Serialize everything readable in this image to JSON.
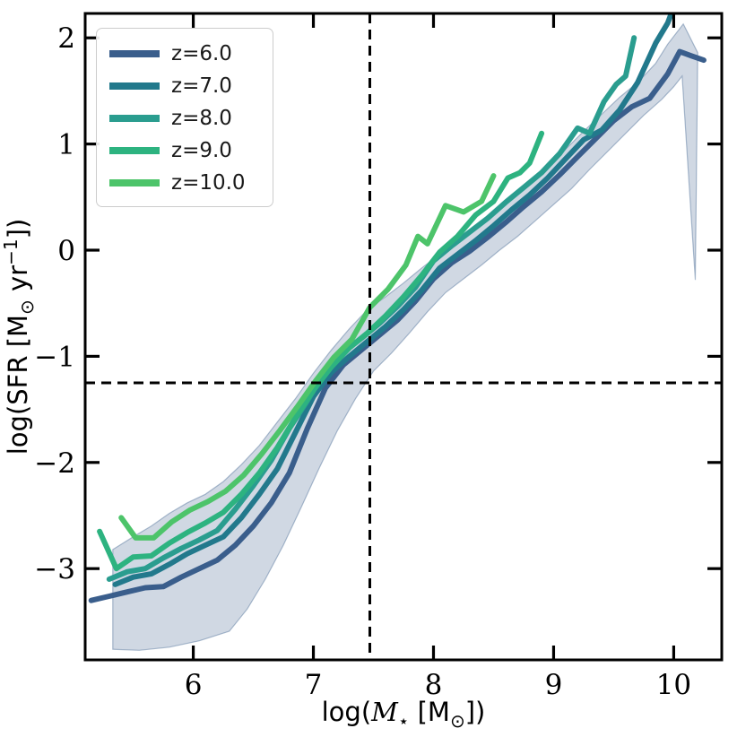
{
  "figure": {
    "background_color": "#ffffff",
    "spine_color": "#000000"
  },
  "chart_data": {
    "type": "line",
    "title": "",
    "xlabel": "log(M⋆ [M⊙])",
    "ylabel": "log(SFR [M⊙ yr⁻¹])",
    "xlabel_parts": [
      {
        "t": "log(",
        "style": "sans"
      },
      {
        "t": "M",
        "style": "serif-italic"
      },
      {
        "t": "⋆",
        "style": "serif",
        "pos": "sub"
      },
      {
        "t": " [M",
        "style": "sans"
      },
      {
        "t": "⊙",
        "style": "sans",
        "pos": "sub"
      },
      {
        "t": "])",
        "style": "sans"
      }
    ],
    "ylabel_parts": [
      {
        "t": "log(SFR [M",
        "style": "sans"
      },
      {
        "t": "⊙",
        "style": "sans",
        "pos": "sub"
      },
      {
        "t": " yr",
        "style": "sans"
      },
      {
        "t": "−1",
        "style": "sans",
        "pos": "sup"
      },
      {
        "t": "])",
        "style": "sans"
      }
    ],
    "xlim": [
      5.1,
      10.4
    ],
    "ylim": [
      -3.86,
      2.23
    ],
    "xticks": [
      "6",
      "7",
      "8",
      "9",
      "10"
    ],
    "xtick_values": [
      6,
      7,
      8,
      9,
      10
    ],
    "yticks": [
      "2",
      "1",
      "0",
      "−1",
      "−2",
      "−3"
    ],
    "ytick_values": [
      2,
      1,
      0,
      -1,
      -2,
      -3
    ],
    "grid": false,
    "tick_style": {
      "direction": "in",
      "length": 16,
      "width": 3.2,
      "all_four_sides": true
    },
    "dashed_lines": {
      "vertical_x": 7.47,
      "horizontal_y": -1.25,
      "color": "#000000",
      "style": "dashed"
    },
    "legend": {
      "position": "upper left",
      "entries": [
        "z=6.0",
        "z=7.0",
        "z=8.0",
        "z=9.0",
        "z=10.0"
      ]
    },
    "band": {
      "name": "z6-scatter-band",
      "color": "#3A5E8C",
      "fill_opacity": 0.24,
      "edge_opacity": 0.4,
      "upper": [
        [
          5.33,
          -2.82
        ],
        [
          5.5,
          -2.7
        ],
        [
          5.65,
          -2.6
        ],
        [
          5.8,
          -2.48
        ],
        [
          5.95,
          -2.38
        ],
        [
          6.1,
          -2.3
        ],
        [
          6.25,
          -2.18
        ],
        [
          6.4,
          -2.02
        ],
        [
          6.55,
          -1.84
        ],
        [
          6.7,
          -1.62
        ],
        [
          6.85,
          -1.4
        ],
        [
          7.0,
          -1.16
        ],
        [
          7.15,
          -0.94
        ],
        [
          7.3,
          -0.74
        ],
        [
          7.45,
          -0.56
        ],
        [
          7.6,
          -0.44
        ],
        [
          7.75,
          -0.31
        ],
        [
          7.9,
          -0.17
        ],
        [
          8.05,
          -0.04
        ],
        [
          8.2,
          0.07
        ],
        [
          8.35,
          0.2
        ],
        [
          8.5,
          0.34
        ],
        [
          8.65,
          0.49
        ],
        [
          8.8,
          0.63
        ],
        [
          8.95,
          0.78
        ],
        [
          9.1,
          0.95
        ],
        [
          9.25,
          1.12
        ],
        [
          9.4,
          1.28
        ],
        [
          9.55,
          1.44
        ],
        [
          9.7,
          1.58
        ],
        [
          9.85,
          1.76
        ],
        [
          9.95,
          1.94
        ],
        [
          10.08,
          2.13
        ],
        [
          10.2,
          1.86
        ]
      ],
      "lower": [
        [
          5.33,
          -3.76
        ],
        [
          5.55,
          -3.77
        ],
        [
          5.8,
          -3.74
        ],
        [
          6.05,
          -3.68
        ],
        [
          6.3,
          -3.59
        ],
        [
          6.45,
          -3.38
        ],
        [
          6.6,
          -3.1
        ],
        [
          6.75,
          -2.78
        ],
        [
          6.9,
          -2.42
        ],
        [
          7.05,
          -2.05
        ],
        [
          7.2,
          -1.7
        ],
        [
          7.35,
          -1.4
        ],
        [
          7.5,
          -1.14
        ],
        [
          7.65,
          -0.97
        ],
        [
          7.8,
          -0.78
        ],
        [
          7.95,
          -0.58
        ],
        [
          8.1,
          -0.4
        ],
        [
          8.25,
          -0.27
        ],
        [
          8.4,
          -0.14
        ],
        [
          8.55,
          0.0
        ],
        [
          8.7,
          0.13
        ],
        [
          8.85,
          0.28
        ],
        [
          9.0,
          0.43
        ],
        [
          9.15,
          0.58
        ],
        [
          9.3,
          0.76
        ],
        [
          9.45,
          0.93
        ],
        [
          9.6,
          1.1
        ],
        [
          9.75,
          1.27
        ],
        [
          9.9,
          1.42
        ],
        [
          10.0,
          1.54
        ],
        [
          10.07,
          1.64
        ],
        [
          10.18,
          -0.28
        ]
      ]
    },
    "series": [
      {
        "name": "z6",
        "label": "z=6.0",
        "color": "#3A5E8C",
        "linewidth": 6,
        "points": [
          [
            5.15,
            -3.3
          ],
          [
            5.3,
            -3.26
          ],
          [
            5.45,
            -3.22
          ],
          [
            5.6,
            -3.18
          ],
          [
            5.75,
            -3.17
          ],
          [
            5.9,
            -3.08
          ],
          [
            6.05,
            -3.0
          ],
          [
            6.2,
            -2.92
          ],
          [
            6.35,
            -2.78
          ],
          [
            6.5,
            -2.6
          ],
          [
            6.65,
            -2.38
          ],
          [
            6.8,
            -2.1
          ],
          [
            6.95,
            -1.68
          ],
          [
            7.1,
            -1.3
          ],
          [
            7.25,
            -1.08
          ],
          [
            7.4,
            -0.94
          ],
          [
            7.55,
            -0.8
          ],
          [
            7.7,
            -0.66
          ],
          [
            7.85,
            -0.48
          ],
          [
            8.0,
            -0.27
          ],
          [
            8.15,
            -0.12
          ],
          [
            8.3,
            -0.01
          ],
          [
            8.45,
            0.12
          ],
          [
            8.6,
            0.26
          ],
          [
            8.75,
            0.41
          ],
          [
            8.9,
            0.55
          ],
          [
            9.05,
            0.71
          ],
          [
            9.2,
            0.88
          ],
          [
            9.35,
            1.05
          ],
          [
            9.5,
            1.22
          ],
          [
            9.65,
            1.35
          ],
          [
            9.8,
            1.43
          ],
          [
            9.95,
            1.66
          ],
          [
            10.05,
            1.87
          ],
          [
            10.15,
            1.83
          ],
          [
            10.25,
            1.79
          ]
        ]
      },
      {
        "name": "z7",
        "label": "z=7.0",
        "color": "#22798C",
        "linewidth": 6,
        "points": [
          [
            5.35,
            -3.15
          ],
          [
            5.5,
            -3.08
          ],
          [
            5.65,
            -3.05
          ],
          [
            5.8,
            -2.96
          ],
          [
            5.95,
            -2.86
          ],
          [
            6.1,
            -2.78
          ],
          [
            6.25,
            -2.7
          ],
          [
            6.4,
            -2.52
          ],
          [
            6.55,
            -2.3
          ],
          [
            6.7,
            -2.06
          ],
          [
            6.85,
            -1.72
          ],
          [
            7.0,
            -1.38
          ],
          [
            7.15,
            -1.15
          ],
          [
            7.3,
            -1.0
          ],
          [
            7.45,
            -0.86
          ],
          [
            7.6,
            -0.72
          ],
          [
            7.75,
            -0.56
          ],
          [
            7.9,
            -0.38
          ],
          [
            8.05,
            -0.17
          ],
          [
            8.2,
            -0.04
          ],
          [
            8.35,
            0.09
          ],
          [
            8.5,
            0.23
          ],
          [
            8.65,
            0.38
          ],
          [
            8.8,
            0.52
          ],
          [
            8.95,
            0.68
          ],
          [
            9.1,
            0.86
          ],
          [
            9.25,
            1.04
          ],
          [
            9.4,
            1.13
          ],
          [
            9.55,
            1.32
          ],
          [
            9.7,
            1.58
          ],
          [
            9.85,
            1.95
          ],
          [
            9.95,
            2.14
          ],
          [
            10.02,
            2.35
          ]
        ]
      },
      {
        "name": "z8",
        "label": "z=8.0",
        "color": "#2A9D8F",
        "linewidth": 6,
        "points": [
          [
            5.3,
            -3.1
          ],
          [
            5.45,
            -3.03
          ],
          [
            5.6,
            -3.0
          ],
          [
            5.75,
            -2.9
          ],
          [
            5.9,
            -2.81
          ],
          [
            6.05,
            -2.73
          ],
          [
            6.2,
            -2.64
          ],
          [
            6.35,
            -2.44
          ],
          [
            6.5,
            -2.22
          ],
          [
            6.65,
            -1.98
          ],
          [
            6.8,
            -1.68
          ],
          [
            6.95,
            -1.42
          ],
          [
            7.1,
            -1.14
          ],
          [
            7.25,
            -0.96
          ],
          [
            7.4,
            -0.83
          ],
          [
            7.55,
            -0.69
          ],
          [
            7.7,
            -0.53
          ],
          [
            7.85,
            -0.35
          ],
          [
            8.0,
            -0.1
          ],
          [
            8.15,
            0.04
          ],
          [
            8.3,
            0.17
          ],
          [
            8.45,
            0.3
          ],
          [
            8.6,
            0.45
          ],
          [
            8.75,
            0.59
          ],
          [
            8.9,
            0.73
          ],
          [
            9.05,
            0.91
          ],
          [
            9.2,
            1.15
          ],
          [
            9.3,
            1.1
          ],
          [
            9.42,
            1.4
          ],
          [
            9.52,
            1.56
          ],
          [
            9.6,
            1.64
          ],
          [
            9.67,
            2.0
          ]
        ]
      },
      {
        "name": "z9",
        "label": "z=9.0",
        "color": "#2DB380",
        "linewidth": 6,
        "points": [
          [
            5.22,
            -2.65
          ],
          [
            5.36,
            -3.0
          ],
          [
            5.5,
            -2.89
          ],
          [
            5.65,
            -2.88
          ],
          [
            5.8,
            -2.76
          ],
          [
            5.95,
            -2.66
          ],
          [
            6.1,
            -2.57
          ],
          [
            6.25,
            -2.47
          ],
          [
            6.4,
            -2.3
          ],
          [
            6.55,
            -2.1
          ],
          [
            6.7,
            -1.86
          ],
          [
            6.85,
            -1.58
          ],
          [
            7.0,
            -1.32
          ],
          [
            7.15,
            -1.1
          ],
          [
            7.3,
            -0.92
          ],
          [
            7.45,
            -0.78
          ],
          [
            7.6,
            -0.62
          ],
          [
            7.75,
            -0.44
          ],
          [
            7.9,
            -0.24
          ],
          [
            8.05,
            -0.02
          ],
          [
            8.2,
            0.13
          ],
          [
            8.35,
            0.33
          ],
          [
            8.5,
            0.46
          ],
          [
            8.62,
            0.68
          ],
          [
            8.72,
            0.73
          ],
          [
            8.8,
            0.82
          ],
          [
            8.9,
            1.1
          ]
        ]
      },
      {
        "name": "z10",
        "label": "z=10.0",
        "color": "#4DC46A",
        "linewidth": 6,
        "points": [
          [
            5.4,
            -2.52
          ],
          [
            5.52,
            -2.71
          ],
          [
            5.67,
            -2.71
          ],
          [
            5.82,
            -2.56
          ],
          [
            5.97,
            -2.45
          ],
          [
            6.12,
            -2.37
          ],
          [
            6.27,
            -2.27
          ],
          [
            6.42,
            -2.12
          ],
          [
            6.57,
            -1.92
          ],
          [
            6.72,
            -1.7
          ],
          [
            6.87,
            -1.47
          ],
          [
            7.02,
            -1.23
          ],
          [
            7.17,
            -1.01
          ],
          [
            7.32,
            -0.84
          ],
          [
            7.47,
            -0.54
          ],
          [
            7.62,
            -0.37
          ],
          [
            7.77,
            -0.14
          ],
          [
            7.87,
            0.13
          ],
          [
            7.95,
            0.06
          ],
          [
            8.1,
            0.42
          ],
          [
            8.25,
            0.36
          ],
          [
            8.4,
            0.46
          ],
          [
            8.5,
            0.7
          ]
        ]
      }
    ]
  }
}
